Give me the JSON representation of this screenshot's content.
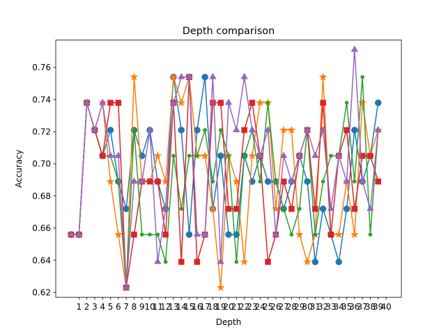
{
  "chart_data": {
    "type": "line",
    "title": "Depth comparison",
    "xlabel": "Depth",
    "ylabel": "Accuracy",
    "xlim": [
      -1.95,
      41.95
    ],
    "ylim": [
      0.617,
      0.777
    ],
    "grid": false,
    "x": [
      0,
      1,
      2,
      3,
      4,
      5,
      6,
      7,
      8,
      9,
      10,
      11,
      12,
      13,
      14,
      15,
      16,
      17,
      18,
      19,
      20,
      21,
      22,
      23,
      24,
      25,
      26,
      27,
      28,
      29,
      30,
      31,
      32,
      33,
      34,
      35,
      36,
      37,
      38,
      39
    ],
    "x_tick_values": [
      1,
      2,
      3,
      4,
      5,
      6,
      7,
      8,
      9,
      10,
      11,
      12,
      13,
      14,
      15,
      16,
      17,
      18,
      19,
      20,
      21,
      22,
      23,
      24,
      25,
      26,
      27,
      28,
      29,
      30,
      31,
      32,
      33,
      34,
      35,
      36,
      37,
      38,
      39,
      40
    ],
    "x_tick_labels": [
      "1",
      "2",
      "3",
      "4",
      "5",
      "6",
      "7",
      "8",
      "9",
      "10",
      "11",
      "12",
      "13",
      "14",
      "15",
      "16",
      "17",
      "18",
      "19",
      "20",
      "21",
      "22",
      "23",
      "24",
      "25",
      "26",
      "27",
      "28",
      "29",
      "30",
      "31",
      "32",
      "33",
      "34",
      "35",
      "36",
      "37",
      "38",
      "39",
      "40"
    ],
    "y_ticks": [
      0.62,
      0.64,
      0.66,
      0.68,
      0.7,
      0.72,
      0.74,
      0.76
    ],
    "y_tick_labels": [
      "0.62",
      "0.64",
      "0.66",
      "0.68",
      "0.70",
      "0.72",
      "0.74",
      "0.76"
    ],
    "series": [
      {
        "color": "#1f77b4",
        "marker": "circle",
        "values": [
          0.656,
          0.656,
          0.738,
          0.721,
          0.705,
          0.721,
          0.689,
          0.672,
          0.721,
          0.705,
          0.721,
          0.689,
          0.672,
          0.754,
          0.721,
          0.656,
          0.721,
          0.754,
          0.672,
          0.705,
          0.656,
          0.656,
          0.705,
          0.689,
          0.705,
          0.689,
          0.689,
          0.672,
          0.689,
          0.705,
          0.689,
          0.639,
          0.672,
          0.656,
          0.639,
          0.672,
          0.721,
          0.689,
          0.705,
          0.738
        ]
      },
      {
        "color": "#ff7f0e",
        "marker": "star",
        "values": [
          0.656,
          0.656,
          0.738,
          0.721,
          0.738,
          0.689,
          0.656,
          0.623,
          0.754,
          0.689,
          0.689,
          0.705,
          0.689,
          0.754,
          0.738,
          0.754,
          0.705,
          0.705,
          0.672,
          0.623,
          0.705,
          0.689,
          0.639,
          0.705,
          0.738,
          0.738,
          0.672,
          0.721,
          0.721,
          0.656,
          0.639,
          0.656,
          0.754,
          0.656,
          0.656,
          0.689,
          0.656,
          0.738,
          0.705,
          0.721
        ]
      },
      {
        "color": "#2ca02c",
        "marker": "hexagon",
        "values": [
          0.656,
          0.656,
          0.738,
          0.721,
          0.705,
          0.705,
          0.689,
          0.623,
          0.721,
          0.656,
          0.656,
          0.656,
          0.639,
          0.705,
          0.672,
          0.705,
          0.705,
          0.721,
          0.689,
          0.721,
          0.705,
          0.639,
          0.705,
          0.721,
          0.689,
          0.738,
          0.689,
          0.672,
          0.656,
          0.672,
          0.721,
          0.656,
          0.689,
          0.705,
          0.705,
          0.738,
          0.689,
          0.754,
          0.656,
          0.721
        ]
      },
      {
        "color": "#d62728",
        "marker": "square",
        "values": [
          0.656,
          0.656,
          0.738,
          0.721,
          0.705,
          0.738,
          0.738,
          0.623,
          0.656,
          0.689,
          0.689,
          0.689,
          0.656,
          0.738,
          0.639,
          0.754,
          0.639,
          0.656,
          0.738,
          0.738,
          0.672,
          0.672,
          0.721,
          0.738,
          0.705,
          0.639,
          0.656,
          0.689,
          0.672,
          0.705,
          0.721,
          0.672,
          0.738,
          0.656,
          0.705,
          0.721,
          0.672,
          0.705,
          0.705,
          0.689
        ]
      },
      {
        "color": "#9467bd",
        "marker": "triangle",
        "values": [
          0.656,
          0.656,
          0.738,
          0.721,
          0.738,
          0.705,
          0.705,
          0.623,
          0.689,
          0.689,
          0.721,
          0.639,
          0.672,
          0.738,
          0.754,
          0.754,
          0.656,
          0.656,
          0.754,
          0.639,
          0.738,
          0.721,
          0.754,
          0.721,
          0.705,
          0.721,
          0.656,
          0.705,
          0.689,
          0.705,
          0.721,
          0.705,
          0.721,
          0.672,
          0.705,
          0.689,
          0.771,
          0.689,
          0.672,
          0.721
        ]
      }
    ]
  }
}
